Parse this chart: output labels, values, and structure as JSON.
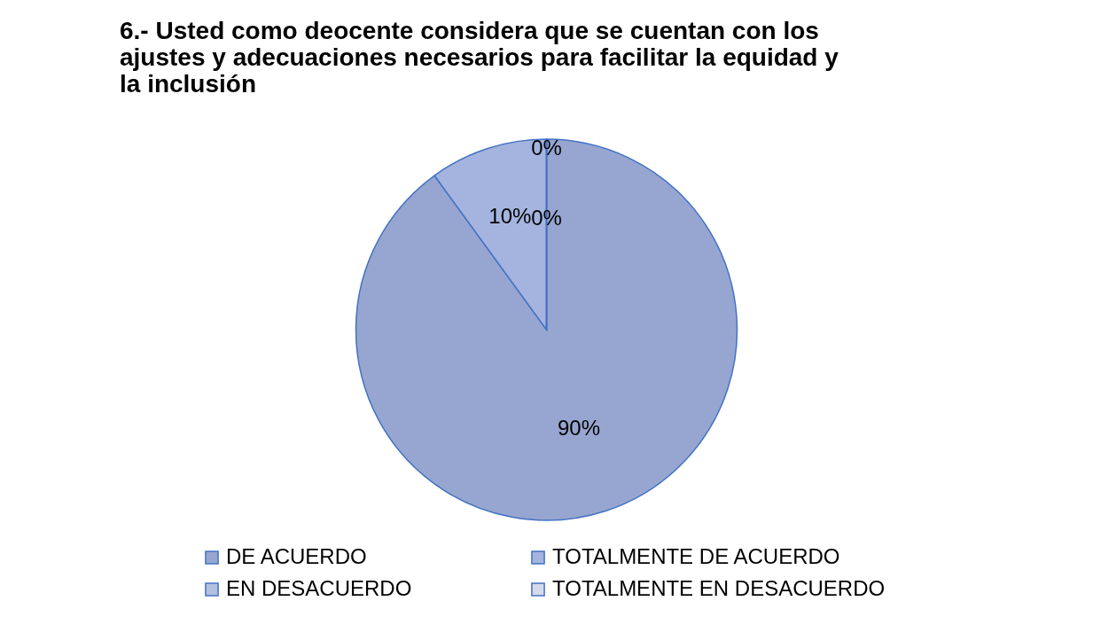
{
  "chart_data": {
    "type": "pie",
    "title": "6.- Usted como deocente considera que se cuentan con los ajustes y adecuaciones necesarios para facilitar la equidad y la inclusión",
    "categories": [
      "DE ACUERDO",
      "TOTALMENTE DE ACUERDO",
      "EN DESACUERDO",
      "TOTALMENTE EN DESACUERDO"
    ],
    "values": [
      90,
      10,
      0,
      0
    ],
    "colors": [
      "#97a6d0",
      "#a4b4de",
      "#b4c0e0",
      "#d4daeb"
    ],
    "value_labels": [
      "90%",
      "10%",
      "0%",
      "0%"
    ],
    "legend": "bottom"
  }
}
